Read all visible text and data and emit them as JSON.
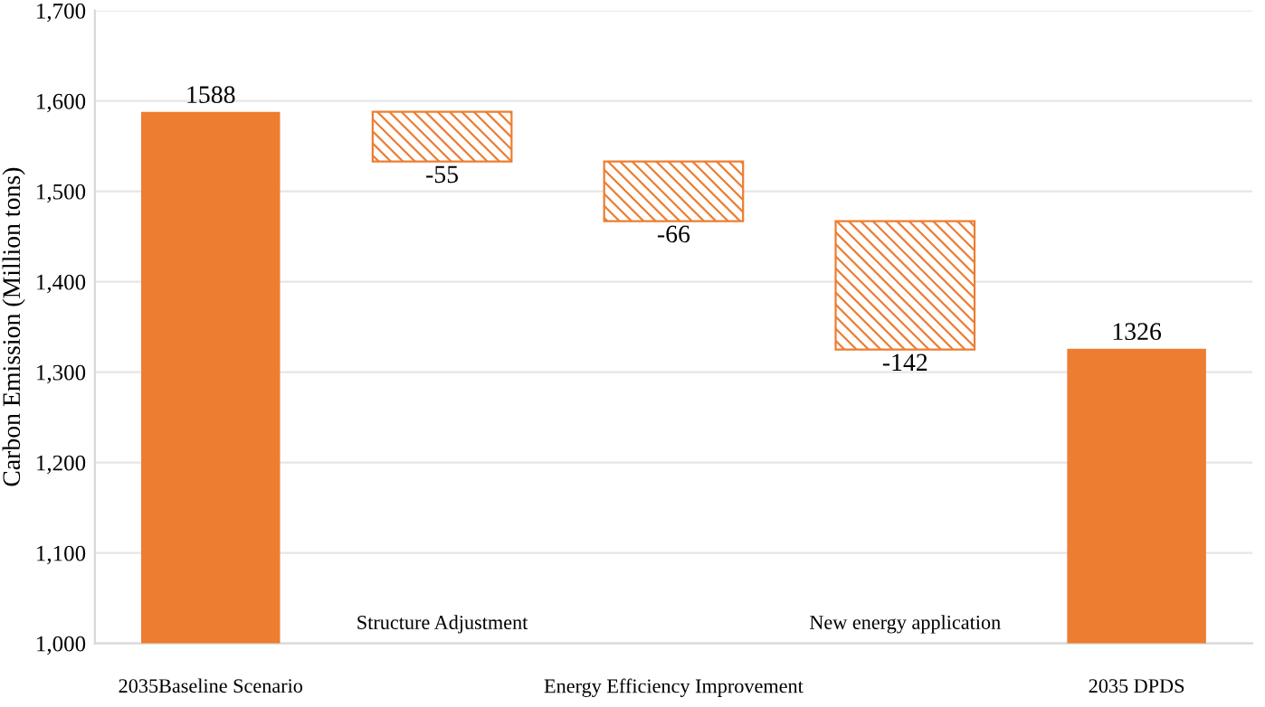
{
  "chart_data": {
    "type": "bar",
    "ylabel": "Carbon Emission (Million tons)",
    "categories": [
      "2035Baseline Scenario",
      "Structure Adjustment",
      "Energy Efficiency Improvement",
      "New energy application",
      "2035 DPDS"
    ],
    "values": [
      1588,
      -55,
      -66,
      -142,
      1326
    ],
    "base": [
      0,
      1588,
      1533,
      1467,
      0
    ],
    "colors": [
      "#ed7d31",
      "#ed7d31",
      "#ed7d31",
      "#ed7d31",
      "#ed7d31"
    ],
    "data_labels": true,
    "ylim": [
      1000,
      1700
    ],
    "yticks": [
      {
        "value": 1000,
        "label": "1,000"
      },
      {
        "value": 1100,
        "label": "1,100"
      },
      {
        "value": 1200,
        "label": "1,200"
      },
      {
        "value": 1300,
        "label": "1,300"
      },
      {
        "value": 1400,
        "label": "1,400"
      },
      {
        "value": 1500,
        "label": "1,500"
      },
      {
        "value": 1600,
        "label": "1,600"
      },
      {
        "value": 1700,
        "label": "1,700"
      }
    ],
    "grid": "y"
  }
}
